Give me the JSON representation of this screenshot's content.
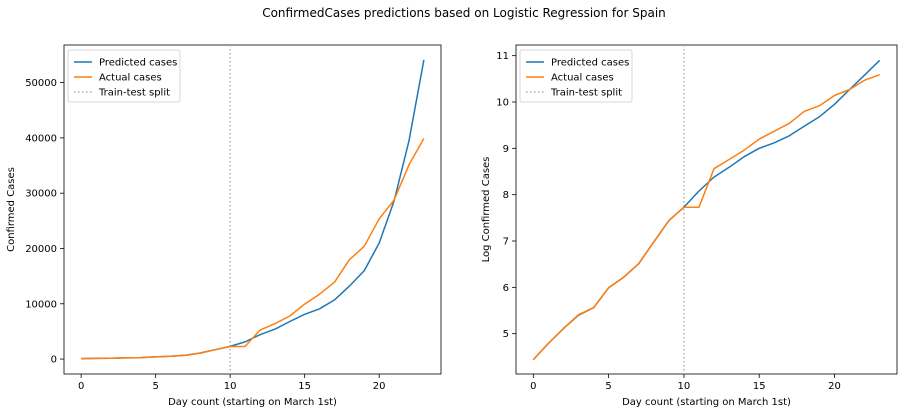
{
  "figure": {
    "title": "ConfirmedCases predictions based on Logistic Regression for Spain"
  },
  "chart_data": [
    {
      "type": "line",
      "xlabel": "Day count (starting on March 1st)",
      "ylabel": "Confirmed Cases",
      "xlim": [
        -1.15,
        24.15
      ],
      "ylim": [
        -2700,
        56800
      ],
      "xticks": [
        0,
        5,
        10,
        15,
        20
      ],
      "yticks": [
        0,
        10000,
        20000,
        30000,
        40000,
        50000
      ],
      "grid": false,
      "legend_position": "upper-left",
      "x": [
        0,
        1,
        2,
        3,
        4,
        5,
        6,
        7,
        8,
        9,
        10,
        11,
        12,
        13,
        14,
        15,
        16,
        17,
        18,
        19,
        20,
        21,
        22,
        23
      ],
      "series": [
        {
          "name": "Predicted cases",
          "color": "#1f77b4",
          "values": [
            84,
            120,
            165,
            220,
            260,
            400,
            500,
            680,
            1100,
            1700,
            2300,
            3100,
            4400,
            5400,
            6800,
            8100,
            9100,
            10700,
            13200,
            16000,
            21000,
            28600,
            39500,
            54100
          ]
        },
        {
          "name": "Actual cases",
          "color": "#ff7f0e",
          "values": [
            84,
            120,
            165,
            222,
            259,
            400,
            500,
            673,
            1073,
            1695,
            2277,
            2277,
            5232,
            6391,
            7798,
            9942,
            11748,
            13910,
            17963,
            20410,
            25374,
            28768,
            35136,
            39885
          ]
        }
      ],
      "vline": {
        "name": "Train-test split",
        "x": 10,
        "color": "#b0b0b0",
        "style": "dotted"
      }
    },
    {
      "type": "line",
      "xlabel": "Day count (starting on March 1st)",
      "ylabel": "Log Confirmed Cases",
      "xlim": [
        -1.15,
        24.15
      ],
      "ylim": [
        4.13,
        11.23
      ],
      "xticks": [
        0,
        5,
        10,
        15,
        20
      ],
      "yticks": [
        5,
        6,
        7,
        8,
        9,
        10,
        11
      ],
      "grid": false,
      "legend_position": "upper-left",
      "x": [
        0,
        1,
        2,
        3,
        4,
        5,
        6,
        7,
        8,
        9,
        10,
        11,
        12,
        13,
        14,
        15,
        16,
        17,
        18,
        19,
        20,
        21,
        22,
        23
      ],
      "series": [
        {
          "name": "Predicted cases",
          "color": "#1f77b4",
          "values": [
            4.44,
            4.79,
            5.11,
            5.4,
            5.56,
            5.99,
            6.22,
            6.51,
            6.98,
            7.44,
            7.73,
            8.08,
            8.38,
            8.59,
            8.82,
            9.0,
            9.12,
            9.27,
            9.48,
            9.68,
            9.95,
            10.27,
            10.58,
            10.9
          ]
        },
        {
          "name": "Actual cases",
          "color": "#ff7f0e",
          "values": [
            4.44,
            4.79,
            5.11,
            5.41,
            5.56,
            5.99,
            6.22,
            6.51,
            6.98,
            7.44,
            7.73,
            7.73,
            8.56,
            8.76,
            8.96,
            9.2,
            9.37,
            9.54,
            9.8,
            9.92,
            10.14,
            10.27,
            10.47,
            10.59
          ]
        }
      ],
      "vline": {
        "name": "Train-test split",
        "x": 10,
        "color": "#b0b0b0",
        "style": "dotted"
      }
    }
  ]
}
